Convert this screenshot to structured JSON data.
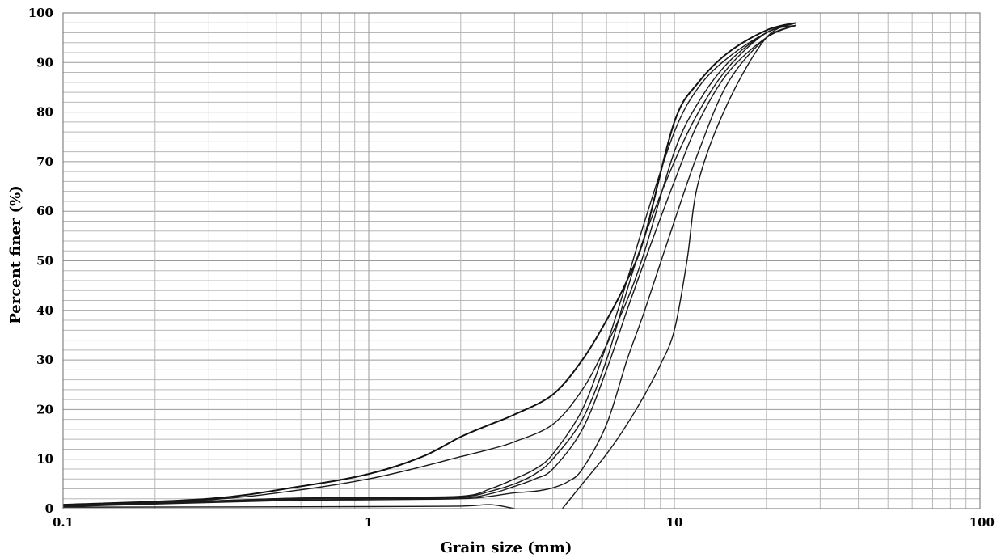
{
  "chart_data": {
    "type": "line",
    "title": "",
    "xlabel": "Grain size  (mm)",
    "ylabel": "Percent finer (%)",
    "xscale": "log",
    "xlim": [
      0.1,
      100
    ],
    "ylim": [
      0,
      100
    ],
    "grid": true,
    "x_tick_labels": [
      "0.1",
      "1",
      "10",
      "100"
    ],
    "y_tick_labels": [
      "0",
      "10",
      "20",
      "30",
      "40",
      "50",
      "60",
      "70",
      "80",
      "90",
      "100"
    ],
    "series": [
      {
        "x": [
          0.1,
          0.3,
          0.6,
          1,
          1.5,
          2,
          2.5,
          3,
          4,
          5,
          6,
          7,
          8,
          10,
          12,
          15,
          20,
          25
        ],
        "y": [
          0.8,
          2,
          4.5,
          7,
          10.5,
          14.5,
          17,
          19,
          23,
          30,
          38,
          46,
          55,
          78,
          86,
          92,
          96.5,
          98
        ]
      },
      {
        "x": [
          0.1,
          0.3,
          0.6,
          1,
          1.5,
          2,
          2.5,
          3,
          4,
          5,
          6,
          7,
          8,
          10,
          12,
          15,
          20,
          25
        ],
        "y": [
          0.7,
          1.8,
          3.8,
          6,
          8.5,
          10.5,
          12,
          13.5,
          17,
          24,
          33,
          42,
          52,
          72,
          82,
          90,
          96,
          98
        ]
      },
      {
        "x": [
          0.1,
          0.5,
          1,
          2,
          2.5,
          3,
          3.5,
          4,
          5,
          6,
          7,
          8,
          10,
          12,
          15,
          20,
          25
        ],
        "y": [
          0.5,
          2,
          2.3,
          2.5,
          4,
          6,
          8,
          11,
          20,
          33,
          46,
          58,
          76,
          85,
          91,
          96,
          98
        ]
      },
      {
        "x": [
          0.1,
          0.5,
          1,
          2,
          2.5,
          3,
          3.5,
          4,
          5,
          6,
          7,
          8,
          10,
          12,
          15,
          20,
          25
        ],
        "y": [
          0.5,
          2,
          2.2,
          2.4,
          3.5,
          5,
          7,
          10,
          18,
          30,
          44,
          55,
          70,
          80,
          89,
          96,
          97.5
        ]
      },
      {
        "x": [
          0.1,
          0.5,
          1,
          2,
          2.5,
          3,
          3.5,
          4,
          5,
          6,
          7,
          8,
          10,
          12,
          15,
          20,
          25
        ],
        "y": [
          0.5,
          1.8,
          2,
          2.2,
          3,
          4.5,
          6,
          8,
          16,
          28,
          40,
          50,
          66,
          78,
          88,
          95,
          97.5
        ]
      },
      {
        "x": [
          0.1,
          0.5,
          1,
          2,
          2.5,
          3,
          3.5,
          4,
          4.5,
          5,
          6,
          7,
          8,
          10,
          12,
          15,
          20,
          25
        ],
        "y": [
          0.4,
          1.6,
          1.8,
          2,
          2.5,
          3.2,
          3.5,
          4.2,
          5.5,
          8,
          17,
          30,
          40,
          58,
          72,
          86,
          95,
          97.5
        ]
      },
      {
        "x": [
          0.1,
          1,
          2,
          2.5,
          3
        ],
        "y": [
          0.3,
          0.4,
          0.5,
          0.8,
          0
        ]
      },
      {
        "x": [
          4.3,
          5,
          6,
          7,
          8,
          9,
          10,
          11,
          12,
          15,
          20,
          25
        ],
        "y": [
          0,
          5,
          11,
          17,
          23,
          29,
          36,
          50,
          66,
          82,
          95,
          98
        ]
      }
    ]
  }
}
